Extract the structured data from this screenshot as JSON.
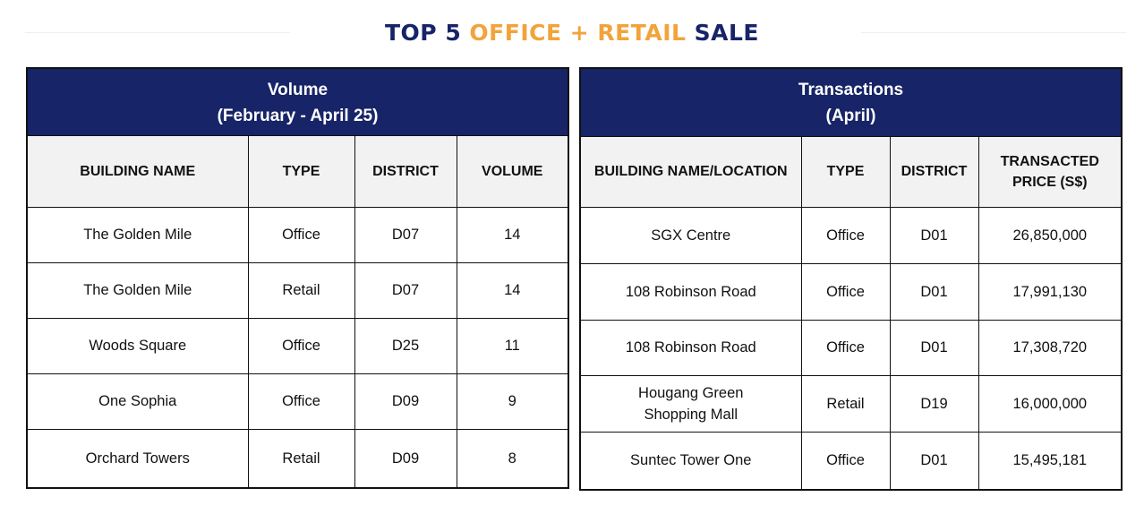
{
  "title": {
    "part1": "TOP 5 ",
    "part2": "OFFICE + RETAIL",
    "part3": " SALE"
  },
  "colors": {
    "navy": "#172467",
    "orange": "#f2a33a",
    "header_grey": "#f2f2f2"
  },
  "volume_table": {
    "heading_line1": "Volume",
    "heading_line2": "(February - April 25)",
    "columns": [
      "BUILDING NAME",
      "TYPE",
      "DISTRICT",
      "VOLUME"
    ],
    "rows": [
      [
        "The Golden Mile",
        "Office",
        "D07",
        "14"
      ],
      [
        "The Golden Mile",
        "Retail",
        "D07",
        "14"
      ],
      [
        "Woods Square",
        "Office",
        "D25",
        "11"
      ],
      [
        "One Sophia",
        "Office",
        "D09",
        "9"
      ],
      [
        "Orchard Towers",
        "Retail",
        "D09",
        "8"
      ]
    ]
  },
  "transactions_table": {
    "heading_line1": "Transactions",
    "heading_line2": "(April)",
    "columns": [
      "BUILDING NAME/LOCATION",
      "TYPE",
      "DISTRICT",
      "TRANSACTED PRICE (S$)"
    ],
    "rows": [
      [
        "SGX Centre",
        "Office",
        "D01",
        "26,850,000"
      ],
      [
        "108 Robinson Road",
        "Office",
        "D01",
        "17,991,130"
      ],
      [
        "108 Robinson Road",
        "Office",
        "D01",
        "17,308,720"
      ],
      [
        "Hougang Green Shopping Mall",
        "Retail",
        "D19",
        "16,000,000"
      ],
      [
        "Suntec Tower One",
        "Office",
        "D01",
        "15,495,181"
      ]
    ]
  }
}
